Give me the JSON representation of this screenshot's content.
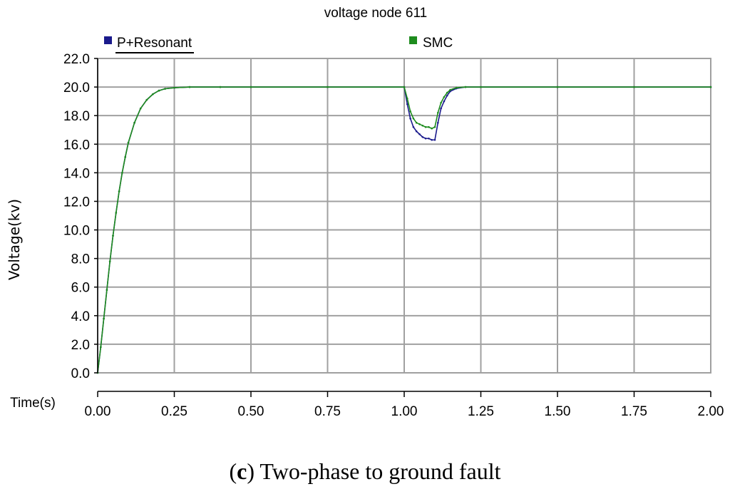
{
  "chart_data": {
    "type": "line",
    "title": "voltage node 611",
    "xlabel": "Time(s)",
    "ylabel": "Voltage(kv)",
    "xlim": [
      0,
      2
    ],
    "ylim": [
      0,
      22
    ],
    "x_ticks": [
      0,
      0.25,
      0.5,
      0.75,
      1.0,
      1.25,
      1.5,
      1.75,
      2.0
    ],
    "x_tick_labels": [
      "0.00",
      "0.25",
      "0.50",
      "0.75",
      "1.00",
      "1.25",
      "1.50",
      "1.75",
      "2.00"
    ],
    "y_ticks": [
      0,
      2,
      4,
      6,
      8,
      10,
      12,
      14,
      16,
      18,
      20,
      22
    ],
    "y_tick_labels": [
      "0.0",
      "2.0",
      "4.0",
      "6.0",
      "8.0",
      "10.0",
      "12.0",
      "14.0",
      "16.0",
      "18.0",
      "20.0",
      "22.0"
    ],
    "grid": true,
    "legend_position": "top",
    "series": [
      {
        "name": "P+Resonant",
        "color": "#1a1a8c",
        "x": [
          0,
          0.01,
          0.02,
          0.03,
          0.04,
          0.05,
          0.06,
          0.07,
          0.08,
          0.09,
          0.1,
          0.12,
          0.14,
          0.16,
          0.18,
          0.2,
          0.22,
          0.25,
          0.3,
          0.4,
          0.5,
          0.75,
          1.0,
          1.01,
          1.02,
          1.03,
          1.04,
          1.05,
          1.06,
          1.07,
          1.08,
          1.09,
          1.1,
          1.11,
          1.12,
          1.13,
          1.14,
          1.15,
          1.17,
          1.2,
          1.25,
          1.5,
          1.75,
          2.0
        ],
        "values": [
          0,
          1.8,
          3.8,
          5.8,
          7.8,
          9.6,
          11.2,
          12.7,
          14.0,
          15.1,
          16.1,
          17.5,
          18.5,
          19.1,
          19.5,
          19.75,
          19.88,
          19.95,
          20.0,
          20.0,
          20.0,
          20.0,
          20.0,
          18.8,
          17.8,
          17.2,
          16.9,
          16.7,
          16.5,
          16.4,
          16.4,
          16.3,
          16.3,
          17.5,
          18.5,
          19.0,
          19.4,
          19.7,
          19.9,
          20.0,
          20.0,
          20.0,
          20.0,
          20.0
        ]
      },
      {
        "name": "SMC",
        "color": "#1e8c1e",
        "x": [
          0,
          0.01,
          0.02,
          0.03,
          0.04,
          0.05,
          0.06,
          0.07,
          0.08,
          0.09,
          0.1,
          0.12,
          0.14,
          0.16,
          0.18,
          0.2,
          0.22,
          0.25,
          0.3,
          0.4,
          0.5,
          0.75,
          1.0,
          1.01,
          1.02,
          1.03,
          1.04,
          1.05,
          1.06,
          1.07,
          1.08,
          1.09,
          1.1,
          1.11,
          1.12,
          1.13,
          1.14,
          1.15,
          1.17,
          1.2,
          1.25,
          1.5,
          1.75,
          2.0
        ],
        "values": [
          0,
          1.8,
          3.8,
          5.8,
          7.8,
          9.6,
          11.2,
          12.7,
          14.0,
          15.1,
          16.1,
          17.5,
          18.5,
          19.1,
          19.5,
          19.75,
          19.88,
          19.95,
          20.0,
          20.0,
          20.0,
          20.0,
          20.0,
          19.2,
          18.3,
          17.8,
          17.5,
          17.4,
          17.3,
          17.2,
          17.2,
          17.1,
          17.2,
          18.2,
          18.9,
          19.3,
          19.6,
          19.8,
          19.95,
          20.0,
          20.0,
          20.0,
          20.0,
          20.0
        ]
      }
    ]
  },
  "caption": {
    "letter": "c",
    "text": " Two-phase to ground fault"
  }
}
